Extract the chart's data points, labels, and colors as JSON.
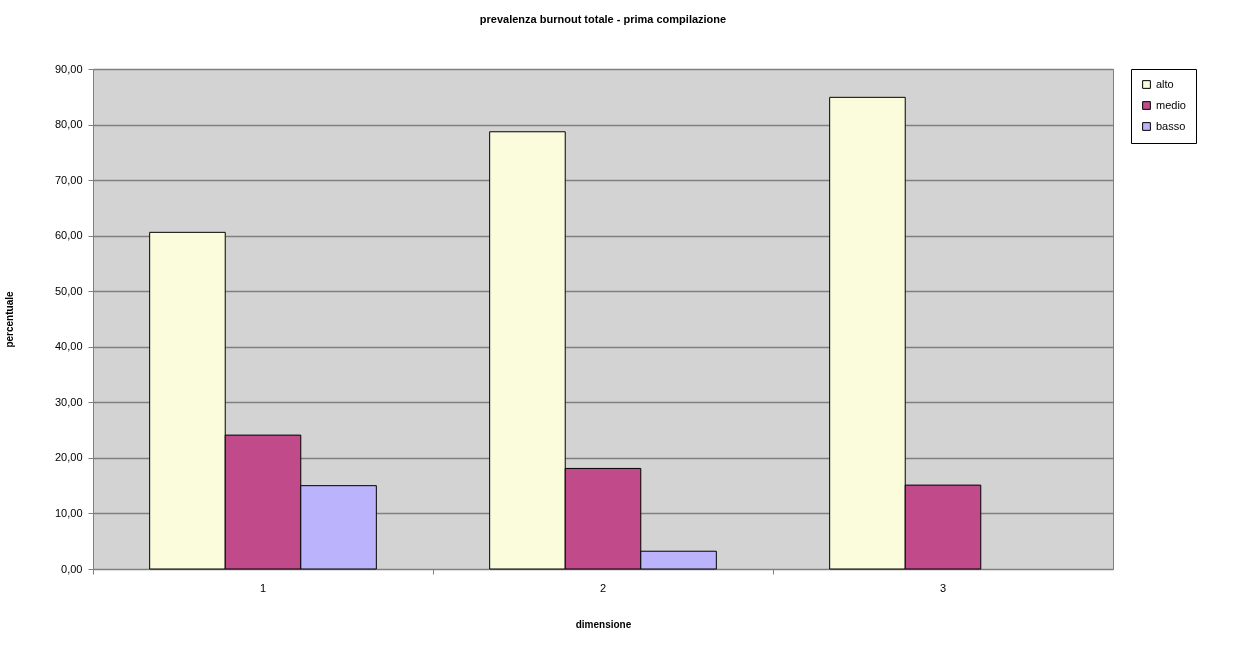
{
  "chart_data": {
    "type": "bar",
    "title": "prevalenza burnout totale - prima compilazione",
    "xlabel": "dimensione",
    "ylabel": "percentuale",
    "categories": [
      "1",
      "2",
      "3"
    ],
    "series": [
      {
        "name": "alto",
        "color": "#fafcdc",
        "values": [
          60.6,
          78.7,
          84.9
        ]
      },
      {
        "name": "medio",
        "color": "#c14b8a",
        "values": [
          24.1,
          18.1,
          15.1
        ]
      },
      {
        "name": "basso",
        "color": "#bbb4fc",
        "values": [
          15.0,
          3.2,
          null
        ]
      }
    ],
    "ylim": [
      0,
      90
    ],
    "yticks": [
      {
        "value": 0,
        "label": "0,00"
      },
      {
        "value": 10,
        "label": "10,00"
      },
      {
        "value": 20,
        "label": "20,00"
      },
      {
        "value": 30,
        "label": "30,00"
      },
      {
        "value": 40,
        "label": "40,00"
      },
      {
        "value": 50,
        "label": "50,00"
      },
      {
        "value": 60,
        "label": "60,00"
      },
      {
        "value": 70,
        "label": "70,00"
      },
      {
        "value": 80,
        "label": "80,00"
      },
      {
        "value": 90,
        "label": "90,00"
      }
    ],
    "grid": "y",
    "legend": "right"
  }
}
